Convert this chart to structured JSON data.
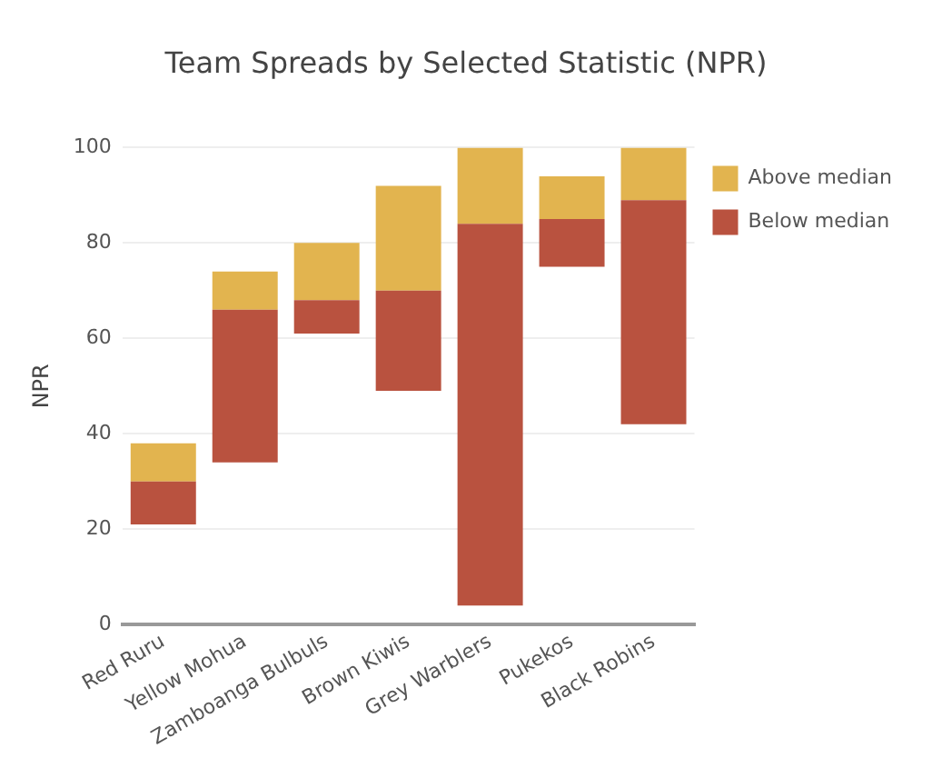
{
  "chart_data": {
    "type": "bar",
    "title": "Team Spreads by Selected Statistic (NPR)",
    "ylabel": "NPR",
    "categories": [
      "Red Ruru",
      "Yellow Mohua",
      "Zamboanga Bulbuls",
      "Brown Kiwis",
      "Grey Warblers",
      "Pukekos",
      "Black Robins"
    ],
    "series": [
      {
        "name": "Below median",
        "color": "#b9523f",
        "base": [
          21,
          34,
          61,
          49,
          4,
          75,
          42
        ],
        "values": [
          9,
          32,
          7,
          21,
          80,
          10,
          47
        ]
      },
      {
        "name": "Above median",
        "color": "#e2b44f",
        "base": [
          30,
          66,
          68,
          70,
          84,
          85,
          89
        ],
        "values": [
          8,
          8,
          12,
          22,
          16,
          9,
          11
        ]
      }
    ],
    "ylim": [
      0,
      100
    ],
    "yticks": [
      0,
      20,
      40,
      60,
      80,
      100
    ],
    "grid": "y",
    "legend": "top right"
  }
}
